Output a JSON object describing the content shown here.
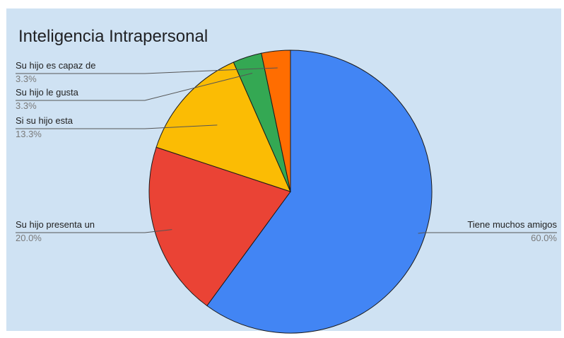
{
  "chart_data": {
    "type": "pie",
    "title": "Inteligencia Intrapersonal",
    "background": "#cfe2f3",
    "slices": [
      {
        "label": "Tiene muchos amigos",
        "value": 60.0,
        "percent_label": "60.0%",
        "color": "#4285f4"
      },
      {
        "label": "Su hijo presenta un",
        "value": 20.0,
        "percent_label": "20.0%",
        "color": "#ea4335"
      },
      {
        "label": "Si su hijo esta",
        "value": 13.3,
        "percent_label": "13.3%",
        "color": "#fbbc04"
      },
      {
        "label": "Su hijo le gusta",
        "value": 3.3,
        "percent_label": "3.3%",
        "color": "#34a853"
      },
      {
        "label": "Su hijo es capaz de",
        "value": 3.3,
        "percent_label": "3.3%",
        "color": "#ff6d01"
      }
    ]
  }
}
